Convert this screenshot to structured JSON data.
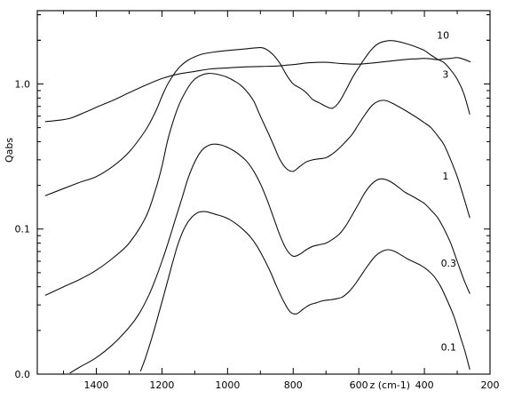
{
  "chart_data": {
    "type": "line",
    "title": "",
    "xlabel": "z (cm-1)",
    "ylabel": "Qabs",
    "x_reversed": true,
    "xlim": [
      1580,
      200
    ],
    "ylim": [
      0.01,
      3.2
    ],
    "yscale": "log",
    "grid": false,
    "legend": "none",
    "x_ticks": [
      {
        "value": 1400,
        "label": "1400"
      },
      {
        "value": 1200,
        "label": "1200"
      },
      {
        "value": 1000,
        "label": "1000"
      },
      {
        "value": 800,
        "label": "800"
      },
      {
        "value": 600,
        "label": "600"
      },
      {
        "value": 400,
        "label": "400"
      },
      {
        "value": 200,
        "label": "200"
      }
    ],
    "y_ticks": [
      {
        "value": 1.0,
        "label": "1.0"
      },
      {
        "value": 0.1,
        "label": "0.1"
      },
      {
        "value": 0.01,
        "label": "0.0"
      }
    ],
    "series": [
      {
        "name": "10",
        "x": [
          1555,
          1520,
          1480,
          1440,
          1400,
          1350,
          1300,
          1250,
          1200,
          1150,
          1100,
          1050,
          1000,
          950,
          900,
          850,
          800,
          750,
          700,
          650,
          600,
          550,
          500,
          450,
          420,
          400,
          380,
          360,
          340,
          320,
          300,
          280,
          260
        ],
        "y": [
          0.55,
          0.56,
          0.58,
          0.63,
          0.69,
          0.77,
          0.87,
          0.98,
          1.09,
          1.17,
          1.22,
          1.27,
          1.29,
          1.31,
          1.32,
          1.33,
          1.36,
          1.4,
          1.41,
          1.38,
          1.37,
          1.4,
          1.44,
          1.48,
          1.49,
          1.5,
          1.49,
          1.47,
          1.49,
          1.5,
          1.52,
          1.48,
          1.42
        ]
      },
      {
        "name": "3",
        "x": [
          1555,
          1500,
          1450,
          1400,
          1350,
          1300,
          1250,
          1220,
          1200,
          1180,
          1150,
          1120,
          1080,
          1040,
          1000,
          950,
          900,
          880,
          860,
          840,
          820,
          800,
          780,
          760,
          740,
          720,
          700,
          680,
          660,
          640,
          620,
          600,
          580,
          560,
          540,
          520,
          500,
          480,
          460,
          440,
          420,
          400,
          380,
          360,
          340,
          320,
          300,
          280,
          262
        ],
        "y": [
          0.17,
          0.19,
          0.21,
          0.23,
          0.27,
          0.34,
          0.48,
          0.64,
          0.82,
          1.02,
          1.28,
          1.46,
          1.6,
          1.66,
          1.7,
          1.74,
          1.78,
          1.72,
          1.58,
          1.38,
          1.15,
          1.0,
          0.94,
          0.87,
          0.78,
          0.74,
          0.7,
          0.68,
          0.75,
          0.9,
          1.1,
          1.3,
          1.52,
          1.74,
          1.9,
          1.97,
          1.99,
          1.96,
          1.91,
          1.85,
          1.78,
          1.7,
          1.58,
          1.48,
          1.4,
          1.25,
          1.08,
          0.86,
          0.62
        ]
      },
      {
        "name": "1",
        "x": [
          1555,
          1500,
          1450,
          1400,
          1350,
          1300,
          1250,
          1220,
          1200,
          1180,
          1150,
          1120,
          1100,
          1080,
          1060,
          1040,
          1020,
          1000,
          980,
          960,
          940,
          920,
          900,
          880,
          860,
          840,
          820,
          800,
          780,
          760,
          740,
          720,
          700,
          680,
          660,
          640,
          620,
          600,
          580,
          560,
          540,
          520,
          500,
          480,
          460,
          440,
          420,
          400,
          380,
          360,
          340,
          320,
          300,
          280,
          262
        ],
        "y": [
          0.035,
          0.04,
          0.045,
          0.052,
          0.063,
          0.08,
          0.12,
          0.185,
          0.27,
          0.43,
          0.7,
          0.95,
          1.08,
          1.15,
          1.18,
          1.175,
          1.15,
          1.11,
          1.05,
          0.98,
          0.88,
          0.76,
          0.6,
          0.48,
          0.38,
          0.3,
          0.26,
          0.25,
          0.27,
          0.29,
          0.3,
          0.305,
          0.31,
          0.33,
          0.36,
          0.4,
          0.45,
          0.53,
          0.62,
          0.71,
          0.76,
          0.77,
          0.74,
          0.7,
          0.66,
          0.62,
          0.58,
          0.54,
          0.5,
          0.44,
          0.38,
          0.3,
          0.23,
          0.165,
          0.12
        ]
      },
      {
        "name": "0.3",
        "x": [
          1480,
          1450,
          1400,
          1350,
          1300,
          1270,
          1240,
          1220,
          1200,
          1180,
          1160,
          1140,
          1120,
          1100,
          1080,
          1060,
          1040,
          1020,
          1000,
          980,
          960,
          940,
          920,
          900,
          880,
          860,
          840,
          820,
          800,
          780,
          760,
          740,
          720,
          700,
          680,
          660,
          640,
          620,
          600,
          580,
          560,
          540,
          520,
          500,
          480,
          460,
          440,
          420,
          400,
          380,
          360,
          340,
          320,
          300,
          280,
          262
        ],
        "y": [
          0.0102,
          0.0112,
          0.013,
          0.016,
          0.021,
          0.026,
          0.035,
          0.045,
          0.06,
          0.082,
          0.115,
          0.16,
          0.225,
          0.29,
          0.345,
          0.375,
          0.385,
          0.38,
          0.365,
          0.345,
          0.32,
          0.29,
          0.25,
          0.205,
          0.16,
          0.12,
          0.09,
          0.072,
          0.065,
          0.067,
          0.072,
          0.076,
          0.078,
          0.08,
          0.085,
          0.092,
          0.105,
          0.125,
          0.15,
          0.18,
          0.205,
          0.22,
          0.22,
          0.21,
          0.195,
          0.18,
          0.17,
          0.16,
          0.15,
          0.135,
          0.12,
          0.1,
          0.08,
          0.06,
          0.045,
          0.036
        ]
      },
      {
        "name": "0.1",
        "x": [
          1265,
          1250,
          1230,
          1210,
          1190,
          1170,
          1150,
          1130,
          1110,
          1090,
          1070,
          1050,
          1030,
          1010,
          990,
          970,
          950,
          930,
          910,
          890,
          870,
          850,
          830,
          810,
          790,
          770,
          750,
          730,
          710,
          690,
          670,
          650,
          630,
          610,
          590,
          570,
          550,
          530,
          510,
          490,
          470,
          450,
          430,
          410,
          390,
          370,
          350,
          330,
          310,
          290,
          275,
          262
        ],
        "y": [
          0.0105,
          0.013,
          0.018,
          0.026,
          0.038,
          0.056,
          0.08,
          0.103,
          0.12,
          0.13,
          0.132,
          0.129,
          0.125,
          0.121,
          0.115,
          0.107,
          0.098,
          0.088,
          0.076,
          0.063,
          0.051,
          0.04,
          0.032,
          0.027,
          0.026,
          0.028,
          0.03,
          0.031,
          0.032,
          0.0325,
          0.033,
          0.034,
          0.037,
          0.042,
          0.049,
          0.057,
          0.065,
          0.07,
          0.072,
          0.07,
          0.066,
          0.062,
          0.059,
          0.056,
          0.052,
          0.047,
          0.04,
          0.032,
          0.025,
          0.018,
          0.014,
          0.0108
        ]
      }
    ],
    "curve_labels": [
      {
        "series": "10",
        "text": "10",
        "at_x": 362,
        "at_y": 2.05
      },
      {
        "series": "3",
        "text": "3",
        "at_x": 345,
        "at_y": 1.1
      },
      {
        "series": "1",
        "text": "1",
        "at_x": 345,
        "at_y": 0.22
      },
      {
        "series": "0.3",
        "text": "0.3",
        "at_x": 350,
        "at_y": 0.055
      },
      {
        "series": "0.1",
        "text": "0.1",
        "at_x": 350,
        "at_y": 0.0145
      }
    ]
  }
}
